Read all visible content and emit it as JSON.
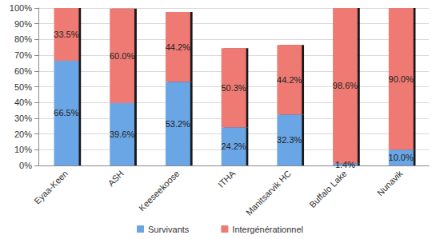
{
  "chart_data": {
    "type": "bar",
    "stacked": true,
    "data_labels": true,
    "grid": true,
    "legend": "bottom",
    "categories": [
      "Eyaa-Keen",
      "ASH",
      "Keeseekoose",
      "ITHA",
      "Manitsarvik HC",
      "Buffalo Lake",
      "Nunavik"
    ],
    "series": [
      {
        "name": "Survivants",
        "color": "#6aa6e6",
        "values": [
          66.5,
          39.6,
          53.2,
          24.2,
          32.3,
          1.4,
          10.0
        ],
        "value_labels": [
          "66.5%",
          "39.6%",
          "53.2%",
          "24.2%",
          "32.3%",
          "1.4%",
          "10.0%"
        ]
      },
      {
        "name": "Intergénérationnel",
        "color": "#ee7a73",
        "values": [
          33.5,
          60.0,
          44.2,
          50.3,
          44.2,
          98.6,
          90.0
        ],
        "value_labels": [
          "33.5%",
          "60.0%",
          "44.2%",
          "50.3%",
          "44.2%",
          "98.6%",
          "90.0%"
        ]
      }
    ],
    "ylim": [
      0,
      100
    ],
    "yticks": [
      {
        "value": 0,
        "label": "0%"
      },
      {
        "value": 10,
        "label": "10%"
      },
      {
        "value": 20,
        "label": "20%"
      },
      {
        "value": 30,
        "label": "30%"
      },
      {
        "value": 40,
        "label": "40%"
      },
      {
        "value": 50,
        "label": "50%"
      },
      {
        "value": 60,
        "label": "60%"
      },
      {
        "value": 70,
        "label": "70%"
      },
      {
        "value": 80,
        "label": "80%"
      },
      {
        "value": 90,
        "label": "90%"
      },
      {
        "value": 100,
        "label": "100%"
      }
    ]
  }
}
